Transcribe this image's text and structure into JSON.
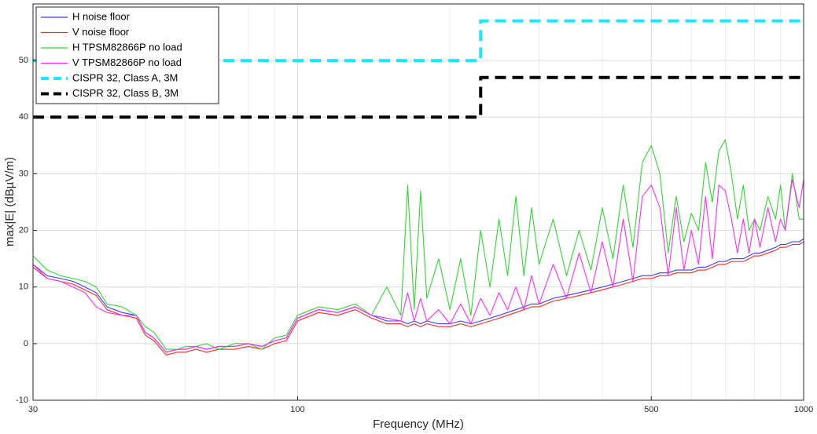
{
  "chart_data": {
    "type": "line",
    "xlabel": "Frequency (MHz)",
    "ylabel": "max|E| (dBµV/m)",
    "xscale": "log",
    "xlim": [
      30,
      1000
    ],
    "xticks": [
      30,
      100,
      500,
      1000
    ],
    "ylim": [
      -10,
      60
    ],
    "yticks": [
      -10,
      0,
      10,
      20,
      30,
      40,
      50
    ],
    "grid": true,
    "minor_grid": true,
    "legend": "upper left",
    "x": [
      30,
      32,
      34,
      36,
      38,
      40,
      42,
      45,
      48,
      50,
      52,
      55,
      58,
      60,
      63,
      66,
      70,
      75,
      80,
      85,
      90,
      95,
      100,
      110,
      120,
      130,
      140,
      150,
      160,
      165,
      170,
      175,
      180,
      190,
      200,
      210,
      220,
      230,
      240,
      250,
      260,
      270,
      280,
      290,
      300,
      320,
      340,
      360,
      380,
      400,
      420,
      440,
      460,
      480,
      500,
      520,
      540,
      560,
      580,
      600,
      620,
      640,
      660,
      680,
      700,
      720,
      740,
      760,
      780,
      800,
      820,
      850,
      880,
      900,
      920,
      950,
      980,
      1000
    ],
    "series": [
      {
        "name": "H noise floor",
        "color": "#3b3bff",
        "dash": false,
        "values": [
          14,
          12,
          11.5,
          11,
          10,
          9,
          6.5,
          5.5,
          5,
          2,
          1,
          -1.5,
          -1,
          -1,
          -0.5,
          -1,
          -0.5,
          -0.5,
          0,
          -0.5,
          0.5,
          1,
          4.5,
          6,
          5.5,
          6.5,
          5,
          4,
          4,
          3.5,
          4,
          3.5,
          4,
          3.5,
          3.5,
          4,
          3.5,
          4,
          4.5,
          5,
          5.5,
          6,
          6.5,
          7,
          7,
          8,
          8.5,
          9,
          9.5,
          10,
          10.5,
          11,
          11.5,
          12,
          12,
          12.5,
          12.5,
          13,
          13,
          13,
          13.5,
          13.5,
          14,
          14.5,
          14.5,
          15,
          15,
          15,
          15.5,
          16,
          16,
          16.5,
          17,
          17.5,
          17.5,
          18,
          18,
          18.5
        ]
      },
      {
        "name": "V noise floor",
        "color": "#ff2a2a",
        "dash": false,
        "values": [
          13.5,
          11.5,
          11,
          10.5,
          9.5,
          8.5,
          6,
          5,
          4.5,
          1.5,
          0.5,
          -2,
          -1.5,
          -1.5,
          -1,
          -1.5,
          -1,
          -1,
          -0.5,
          -1,
          0,
          0.5,
          4,
          5.5,
          5,
          6,
          4.5,
          3.5,
          3.5,
          3,
          3.5,
          3,
          3.5,
          3,
          3,
          3.5,
          3,
          3.5,
          4,
          4.5,
          5,
          5.5,
          6,
          6.5,
          6.5,
          7.5,
          8,
          8.5,
          9,
          9.5,
          10,
          10.5,
          11,
          11.5,
          11.5,
          12,
          12,
          12.5,
          12.5,
          12.5,
          13,
          13,
          13.5,
          14,
          14,
          14.5,
          14.5,
          14.5,
          15,
          15.5,
          15.5,
          16,
          16.5,
          17,
          17,
          17.5,
          17.5,
          18
        ]
      },
      {
        "name": "H TPSM82866P no load",
        "color": "#2fd82f",
        "dash": false,
        "values": [
          15.5,
          13,
          12,
          11.5,
          11,
          10,
          7,
          6.5,
          5,
          3,
          2,
          -1,
          -1,
          -0.5,
          -0.5,
          0,
          -1,
          0,
          0,
          -1,
          1,
          1.5,
          5,
          6.5,
          6,
          7,
          5,
          10,
          5,
          28,
          6,
          27,
          8,
          15,
          6,
          15,
          5,
          20,
          10,
          22,
          12,
          26,
          12,
          24,
          14,
          22,
          12,
          20,
          13,
          24,
          15,
          28,
          17,
          32,
          35,
          30,
          16,
          26,
          18,
          23,
          20,
          32,
          25,
          34,
          36,
          30,
          22,
          28,
          20,
          22,
          20,
          26,
          22,
          28,
          20,
          30,
          22,
          22
        ]
      },
      {
        "name": "V TPSM82866P no load",
        "color": "#ff2aff",
        "dash": false,
        "values": [
          14,
          11.5,
          11,
          10,
          9,
          6.5,
          5.5,
          5,
          5,
          2,
          1,
          -1.5,
          -1,
          -1,
          -0.5,
          -1,
          -0.5,
          -0.5,
          0,
          -0.5,
          0.5,
          1,
          4.5,
          6,
          5.5,
          6.5,
          5,
          4.5,
          4,
          9,
          4,
          8,
          4,
          6,
          3.5,
          7,
          3.5,
          8,
          5,
          9,
          6,
          10,
          6,
          12,
          7,
          14,
          8,
          16,
          9,
          18,
          10,
          22,
          11,
          26,
          28,
          24,
          12,
          24,
          13,
          20,
          14,
          26,
          15,
          28,
          27,
          22,
          16,
          22,
          16,
          22,
          17,
          24,
          18,
          22,
          20,
          29,
          24,
          29
        ]
      },
      {
        "name": "CISPR 32, Class A, 3M",
        "color": "#1ee6ff",
        "dash": true,
        "x": [
          30,
          230,
          230,
          1000
        ],
        "values": [
          50,
          50,
          57,
          57
        ]
      },
      {
        "name": "CISPR 32, Class B, 3M",
        "color": "#000000",
        "dash": true,
        "x": [
          30,
          230,
          230,
          1000
        ],
        "values": [
          40,
          40,
          47,
          47
        ]
      }
    ]
  }
}
